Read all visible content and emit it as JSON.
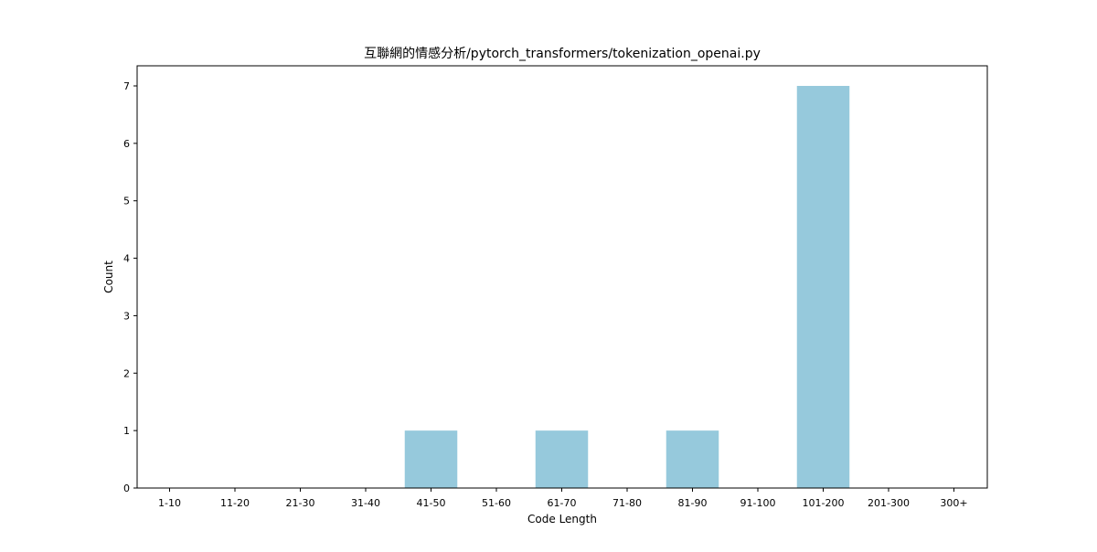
{
  "chart_data": {
    "type": "bar",
    "title": "互聯網的情感分析/pytorch_transformers/tokenization_openai.py",
    "xlabel": "Code Length",
    "ylabel": "Count",
    "categories": [
      "1-10",
      "11-20",
      "21-30",
      "31-40",
      "41-50",
      "51-60",
      "61-70",
      "71-80",
      "81-90",
      "91-100",
      "101-200",
      "201-300",
      "300+"
    ],
    "values": [
      0,
      0,
      0,
      0,
      1,
      0,
      1,
      0,
      1,
      0,
      7,
      0,
      0
    ],
    "yticks": [
      0,
      1,
      2,
      3,
      4,
      5,
      6,
      7
    ],
    "ylim": [
      0,
      7.35
    ],
    "grid": false,
    "bar_color": "#96c9dc"
  }
}
